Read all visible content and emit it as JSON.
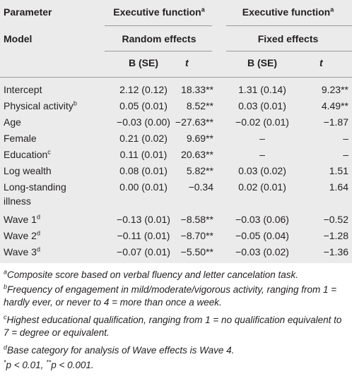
{
  "header": {
    "param_label": "Parameter",
    "model_label": "Model",
    "group1": {
      "title": "Executive function",
      "note": "a",
      "sub": "Random effects"
    },
    "group2": {
      "title": "Executive function",
      "note": "a",
      "sub": "Fixed effects"
    },
    "col_b": "B (SE)",
    "col_t": "t"
  },
  "rows": [
    {
      "label": "Intercept",
      "note": "",
      "b1": "2.12 (0.12)",
      "t1": "18.33**",
      "b2": "1.31 (0.14)",
      "t2": "9.23**"
    },
    {
      "label": "Physical activity",
      "note": "b",
      "b1": "0.05 (0.01)",
      "t1": "8.52**",
      "b2": "0.03 (0.01)",
      "t2": "4.49**"
    },
    {
      "label": "Age",
      "note": "",
      "b1": "−0.03 (0.00)",
      "t1": "−27.63**",
      "b2": "−0.02 (0.01)",
      "t2": "−1.87"
    },
    {
      "label": "Female",
      "note": "",
      "b1": "0.21 (0.02)",
      "t1": "9.69**",
      "b2": "–",
      "t2": "–"
    },
    {
      "label": "Education",
      "note": "c",
      "b1": "0.11 (0.01)",
      "t1": "20.63**",
      "b2": "–",
      "t2": "–"
    },
    {
      "label": "Log wealth",
      "note": "",
      "b1": "0.08 (0.01)",
      "t1": "5.82**",
      "b2": "0.03 (0.02)",
      "t2": "1.51"
    },
    {
      "label": "Long-standing",
      "label2": "illness",
      "note": "",
      "b1": "0.00 (0.01)",
      "t1": "−0.34",
      "b2": "0.02 (0.01)",
      "t2": "1.64"
    },
    {
      "label": "Wave 1",
      "note": "d",
      "b1": "−0.13 (0.01)",
      "t1": "−8.58**",
      "b2": "−0.03 (0.06)",
      "t2": "−0.52"
    },
    {
      "label": "Wave 2",
      "note": "d",
      "b1": "−0.11 (0.01)",
      "t1": "−8.70**",
      "b2": "−0.05 (0.04)",
      "t2": "−1.28"
    },
    {
      "label": "Wave 3",
      "note": "d",
      "b1": "−0.07 (0.01)",
      "t1": "−5.50**",
      "b2": "−0.03 (0.02)",
      "t2": "−1.36"
    }
  ],
  "footnotes": {
    "a": {
      "mark": "a",
      "text": "Composite score based on verbal fluency and letter cancelation task."
    },
    "b": {
      "mark": "b",
      "text": "Frequency of engagement in mild/moderate/vigorous activity, ranging from 1 = hardly ever, or never to 4 = more than once a week."
    },
    "c": {
      "mark": "c",
      "text": "Highest educational qualification, ranging from 1 = no qualification equivalent to 7 = degree or equivalent."
    },
    "d": {
      "mark": "d",
      "text": "Base category for analysis of Wave effects is Wave 4."
    },
    "sig": {
      "p1_mark": "*",
      "p1_text": "p < 0.01, ",
      "p2_mark": "**",
      "p2_text": "p < 0.001."
    }
  }
}
